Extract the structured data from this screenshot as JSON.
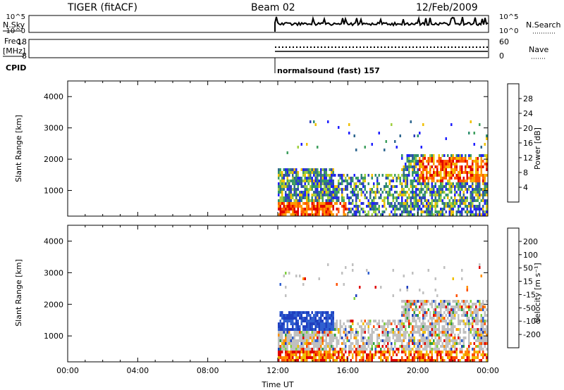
{
  "header": {
    "station": "TIGER (fitACF)",
    "beam": "Beam 02",
    "date": "12/Feb/2009"
  },
  "aux_panels": {
    "nsky": {
      "left_label": "N.Sky",
      "left_ticks": [
        "10^5",
        "10^0"
      ],
      "right_label": "N.Search",
      "right_ticks": [
        "10^5",
        "10^0"
      ]
    },
    "freq": {
      "left_label_line1": "Freq.",
      "left_label_line2": "[MHz]",
      "left_ticks": [
        "18",
        "8"
      ],
      "right_label": "Nave",
      "right_ticks": [
        "60",
        "0"
      ]
    },
    "cpid": {
      "label": "CPID",
      "program": "normalsound (fast) 157"
    }
  },
  "chart_data": [
    {
      "type": "heatmap",
      "panel": "power",
      "ylabel": "Slant Range [km]",
      "xlabel": "",
      "ylim": [
        180,
        4500
      ],
      "y_ticks": [
        "1000",
        "2000",
        "3000",
        "4000"
      ],
      "x_ticks": [
        "00:00",
        "04:00",
        "08:00",
        "12:00",
        "16:00",
        "20:00",
        "00:00"
      ],
      "colorbar": {
        "label": "Power [dB]",
        "ticks": [
          "28",
          "24",
          "20",
          "16",
          "12",
          "8",
          "4"
        ],
        "colors": [
          "#e00000",
          "#ff5a00",
          "#ff9a00",
          "#f0c000",
          "#a0d040",
          "#40a060",
          "#309070",
          "#306890",
          "#3040c0",
          "#2020ff"
        ]
      },
      "data_start_time": "12:00"
    },
    {
      "type": "heatmap",
      "panel": "velocity",
      "ylabel": "Slant Range [km]",
      "xlabel": "Time UT",
      "ylim": [
        180,
        4500
      ],
      "y_ticks": [
        "1000",
        "2000",
        "3000",
        "4000"
      ],
      "x_ticks": [
        "00:00",
        "04:00",
        "08:00",
        "12:00",
        "16:00",
        "20:00",
        "00:00"
      ],
      "colorbar": {
        "label": "Velocity [m s⁻¹]",
        "ticks": [
          "200",
          "100",
          "50",
          "15",
          "-15",
          "-50",
          "-100",
          "-200"
        ],
        "colors": [
          "#2040c0",
          "#3060d0",
          "#30a040",
          "#80d040",
          "#c0c0c0",
          "#f0c000",
          "#ff9000",
          "#ff5000",
          "#e00000"
        ]
      },
      "data_start_time": "12:00"
    }
  ]
}
